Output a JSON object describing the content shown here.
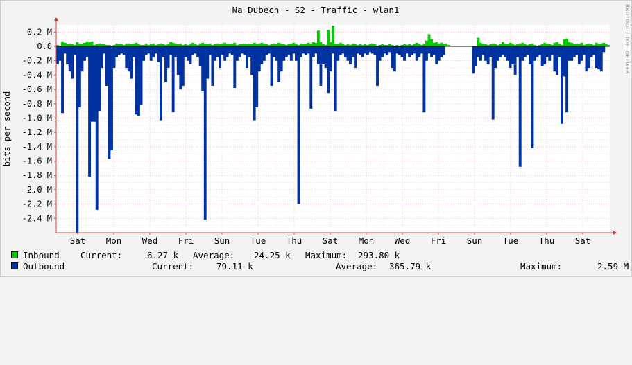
{
  "chart_data": {
    "type": "area",
    "title": "Na Dubech - S2 - Traffic - wlan1",
    "ylabel": "bits per second",
    "ylim": [
      -2.6,
      0.3
    ],
    "y_unit": "M",
    "y_ticks": [
      0.2,
      0.0,
      -0.2,
      -0.4,
      -0.6,
      -0.8,
      -1.0,
      -1.2,
      -1.4,
      -1.6,
      -1.8,
      -2.0,
      -2.2,
      -2.4
    ],
    "y_tick_labels": [
      "0.2 M",
      "0.0",
      "-0.2 M",
      "-0.4 M",
      "-0.6 M",
      "-0.8 M",
      "-1.0 M",
      "-1.2 M",
      "-1.4 M",
      "-1.6 M",
      "-1.8 M",
      "-2.0 M",
      "-2.2 M",
      "-2.4 M"
    ],
    "x_tick_labels": [
      "Sat",
      "Mon",
      "Wed",
      "Fri",
      "Sun",
      "Tue",
      "Thu",
      "Sat",
      "Mon",
      "Wed",
      "Fri",
      "Sun",
      "Tue",
      "Thu",
      "Sat"
    ],
    "grid": true,
    "legend_position": "bottom",
    "series": [
      {
        "name": "Inbound",
        "color": "#00cc00",
        "values": [
          0.02,
          0.01,
          0.07,
          0.05,
          0.03,
          0.04,
          0.03,
          0.02,
          0.06,
          0.04,
          0.03,
          0.05,
          0.07,
          0.06,
          0.07,
          0.02,
          0.03,
          0.04,
          0.03,
          0.03,
          0.02,
          0.02,
          0.01,
          0.02,
          0.04,
          0.03,
          0.03,
          0.02,
          0.04,
          0.04,
          0.03,
          0.04,
          0.05,
          0.03,
          0.02,
          0.02,
          0.04,
          0.02,
          0.03,
          0.04,
          0.02,
          0.03,
          0.04,
          0.03,
          0.02,
          0.03,
          0.06,
          0.05,
          0.04,
          0.03,
          0.04,
          0.02,
          0.03,
          0.02,
          0.04,
          0.05,
          0.03,
          0.02,
          0.04,
          0.05,
          0.03,
          0.03,
          0.04,
          0.02,
          0.03,
          0.04,
          0.03,
          0.04,
          0.05,
          0.03,
          0.03,
          0.04,
          0.05,
          0.02,
          0.03,
          0.03,
          0.04,
          0.03,
          0.04,
          0.03,
          0.05,
          0.03,
          0.04,
          0.05,
          0.04,
          0.03,
          0.02,
          0.03,
          0.04,
          0.03,
          0.05,
          0.04,
          0.03,
          0.02,
          0.03,
          0.04,
          0.05,
          0.03,
          0.02,
          0.04,
          0.03,
          0.04,
          0.05,
          0.04,
          0.06,
          0.05,
          0.22,
          0.06,
          0.03,
          0.02,
          0.23,
          0.06,
          0.29,
          0.04,
          0.04,
          0.05,
          0.03,
          0.02,
          0.03,
          0.02,
          0.04,
          0.03,
          0.02,
          0.03,
          0.02,
          0.03,
          0.02,
          0.03,
          0.04,
          0.03,
          0.01,
          0.02,
          0.03,
          0.02,
          0.02,
          0.03,
          0.02,
          0.01,
          0.02,
          0.01,
          0.02,
          0.03,
          0.02,
          0.03,
          0.02,
          0.03,
          0.05,
          0.04,
          0.02,
          0.04,
          0.08,
          0.17,
          0.1,
          0.05,
          0.06,
          0.04,
          0.05,
          0.03,
          0.04,
          0.02,
          0.0,
          0.0,
          0.0,
          0.0,
          0.0,
          0.0,
          0.0,
          0.0,
          0.0,
          0.0,
          0.0,
          0.12,
          0.05,
          0.04,
          0.03,
          0.02,
          0.03,
          0.04,
          0.03,
          0.02,
          0.03,
          0.06,
          0.04,
          0.03,
          0.05,
          0.04,
          0.02,
          0.03,
          0.04,
          0.05,
          0.03,
          0.02,
          0.03,
          0.04,
          0.02,
          0.01,
          0.02,
          0.03,
          0.05,
          0.04,
          0.03,
          0.02,
          0.05,
          0.06,
          0.04,
          0.02,
          0.1,
          0.11,
          0.06,
          0.05,
          0.03,
          0.04,
          0.03,
          0.05,
          0.02,
          0.03,
          0.04,
          0.03,
          0.02,
          0.05,
          0.04,
          0.04,
          0.05,
          0.03,
          0.02
        ]
      },
      {
        "name": "Outbound",
        "color": "#0033a0",
        "values": [
          -0.25,
          -0.2,
          -0.93,
          -0.1,
          -0.25,
          -0.35,
          -0.45,
          -0.12,
          -2.6,
          -0.85,
          -0.35,
          -0.2,
          -0.15,
          -1.82,
          -1.05,
          -1.05,
          -2.28,
          -0.9,
          -0.3,
          -0.1,
          -0.55,
          -1.57,
          -1.45,
          -0.3,
          -0.15,
          -0.12,
          -0.1,
          -0.12,
          -0.3,
          -0.35,
          -0.45,
          -0.15,
          -0.95,
          -0.97,
          -0.82,
          -0.2,
          -0.12,
          -0.1,
          -0.2,
          -0.15,
          -0.1,
          -0.22,
          -1.03,
          -0.15,
          -0.5,
          -0.3,
          -0.12,
          -0.92,
          -0.15,
          -0.4,
          -0.6,
          -0.55,
          -0.15,
          -0.2,
          -0.25,
          -0.12,
          -0.1,
          -0.15,
          -0.28,
          -0.62,
          -2.42,
          -0.45,
          -0.12,
          -0.55,
          -0.2,
          -0.15,
          -0.3,
          -0.12,
          -0.2,
          -0.15,
          -0.1,
          -0.12,
          -0.58,
          -0.2,
          -0.15,
          -0.1,
          -0.12,
          -0.3,
          -0.15,
          -0.4,
          -1.03,
          -0.85,
          -0.35,
          -0.25,
          -0.2,
          -0.12,
          -0.1,
          -0.55,
          -0.15,
          -0.2,
          -0.5,
          -0.35,
          -0.2,
          -0.15,
          -0.12,
          -0.2,
          -0.1,
          -0.2,
          -2.2,
          -0.15,
          -0.1,
          -0.12,
          -0.1,
          -0.87,
          -0.15,
          -0.1,
          -0.25,
          -0.55,
          -0.25,
          -0.3,
          -0.65,
          -0.35,
          -0.1,
          -0.9,
          -0.2,
          -0.12,
          -0.1,
          -0.15,
          -0.2,
          -0.25,
          -0.15,
          -0.3,
          -0.1,
          -0.12,
          -0.15,
          -0.1,
          -0.12,
          -0.08,
          -0.1,
          -0.12,
          -0.55,
          -0.2,
          -0.15,
          -0.1,
          -0.12,
          -0.08,
          -0.3,
          -0.35,
          -0.1,
          -0.12,
          -0.15,
          -0.2,
          -0.1,
          -0.15,
          -0.12,
          -0.1,
          -0.2,
          -0.15,
          -0.1,
          -0.92,
          -0.2,
          -0.1,
          -0.15,
          -0.12,
          -0.25,
          -0.2,
          -0.15,
          -0.12,
          0.0,
          0.0,
          0.0,
          0.0,
          0.0,
          0.0,
          0.0,
          0.0,
          0.0,
          0.0,
          0.0,
          -0.38,
          -0.28,
          -0.15,
          -0.2,
          -0.12,
          -0.2,
          -0.25,
          -0.15,
          -1.02,
          -0.3,
          -0.2,
          -0.15,
          -0.12,
          -0.15,
          -0.2,
          -0.3,
          -0.25,
          -0.4,
          -0.15,
          -1.68,
          -0.2,
          -0.15,
          -0.12,
          -0.25,
          -1.42,
          -0.2,
          -0.15,
          -0.12,
          -0.28,
          -0.25,
          -0.15,
          -0.2,
          -0.12,
          -0.35,
          -0.4,
          -0.15,
          -1.08,
          -0.42,
          -0.92,
          -0.2,
          -0.2,
          -0.15,
          -0.12,
          -0.25,
          -0.2,
          -0.12,
          -0.35,
          -0.3,
          -0.15,
          -0.12,
          -0.3,
          -0.32,
          -0.35,
          -0.08
        ]
      }
    ]
  },
  "legend": {
    "inbound": {
      "name": "Inbound",
      "current_label": "Current:",
      "current": "6.27 k",
      "average_label": "Average:",
      "average": "24.25 k",
      "maximum_label": "Maximum:",
      "maximum": "293.80 k",
      "color": "#00cc00"
    },
    "outbound": {
      "name": "Outbound",
      "current_label": "Current:",
      "current": "79.11 k",
      "average_label": "Average:",
      "average": "365.79 k",
      "maximum_label": "Maximum:",
      "maximum": "2.59 M",
      "color": "#0033a0"
    }
  },
  "watermark": "RRDTOOL / TOBI OETIKER"
}
